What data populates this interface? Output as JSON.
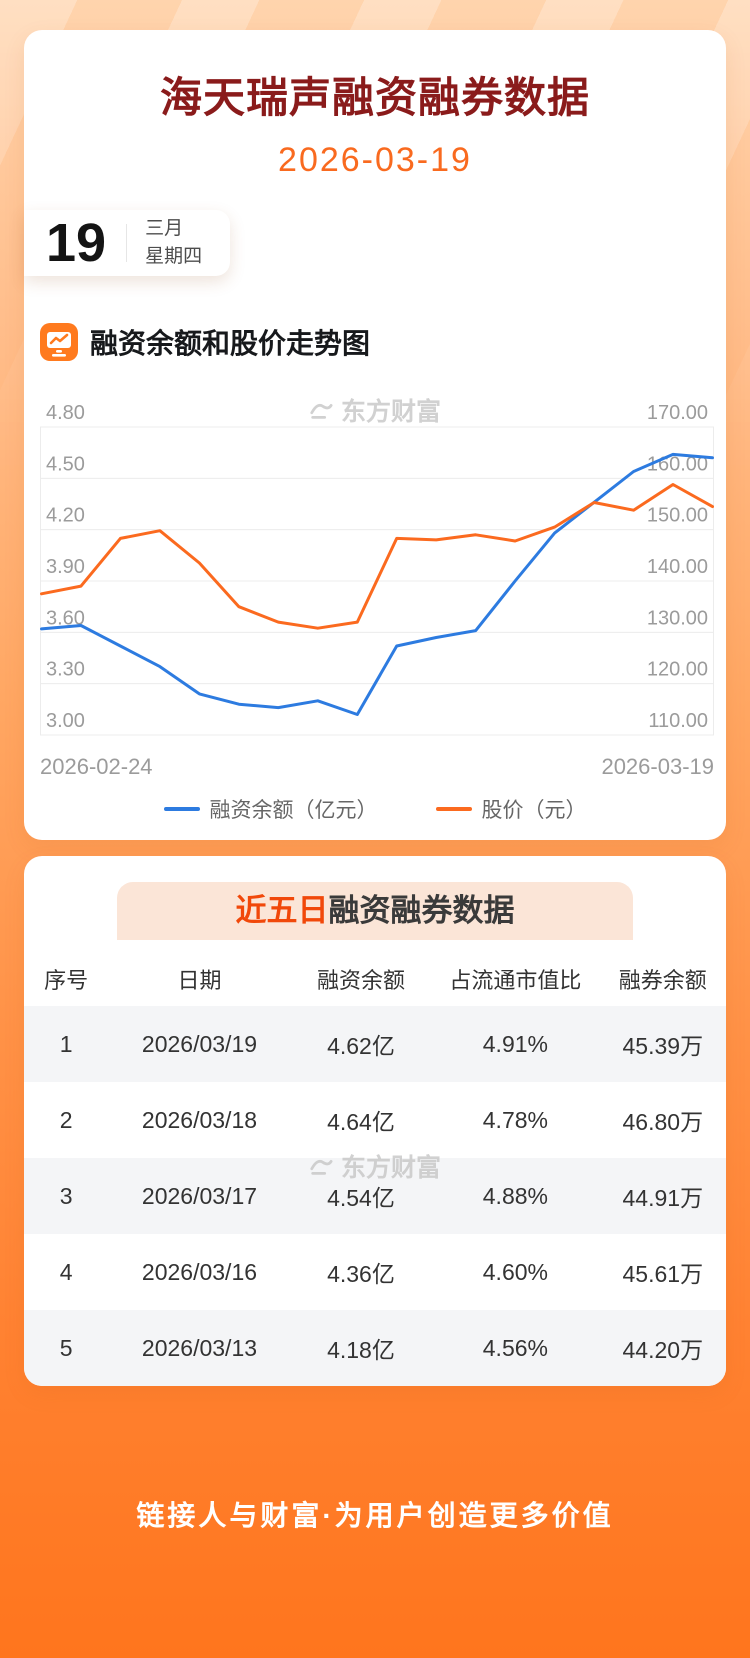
{
  "page": {
    "title": "海天瑞声融资融券数据",
    "date": "2026-03-19",
    "date_badge": {
      "day": "19",
      "month": "三月",
      "weekday": "星期四"
    },
    "footer": "链接人与财富·为用户创造更多价值"
  },
  "chart_section": {
    "title": "融资余额和股价走势图",
    "watermark": "东方财富",
    "legend": [
      {
        "label": "融资余额（亿元）",
        "color": "#2d7be0"
      },
      {
        "label": "股价（元）",
        "color": "#fb6a1f"
      }
    ]
  },
  "chart_data": {
    "type": "line",
    "title": "融资余额和股价走势图",
    "x_labels": [
      "2026-02-24",
      "2026-03-19"
    ],
    "grid": true,
    "legend_position": "bottom",
    "left_axis": {
      "label": "融资余额（亿元）",
      "min": 3.0,
      "max": 4.8,
      "ticks": [
        "3.00",
        "3.30",
        "3.60",
        "3.90",
        "4.20",
        "4.50",
        "4.80"
      ]
    },
    "right_axis": {
      "label": "股价（元）",
      "min": 110,
      "max": 170,
      "ticks": [
        "110.00",
        "120.00",
        "130.00",
        "140.00",
        "150.00",
        "160.00",
        "170.00"
      ]
    },
    "series": [
      {
        "name": "融资余额（亿元）",
        "axis": "left",
        "color": "#2d7be0",
        "values": [
          3.62,
          3.64,
          3.52,
          3.4,
          3.24,
          3.18,
          3.16,
          3.2,
          3.12,
          3.52,
          3.57,
          3.61,
          3.9,
          4.18,
          4.36,
          4.54,
          4.64,
          4.62
        ]
      },
      {
        "name": "股价（元）",
        "axis": "right",
        "color": "#fb6a1f",
        "values": [
          137.5,
          139.0,
          148.3,
          149.8,
          143.5,
          135.0,
          132.0,
          130.8,
          132.0,
          148.3,
          148.0,
          149.0,
          147.8,
          150.5,
          155.3,
          153.8,
          158.8,
          154.5
        ]
      }
    ]
  },
  "table_section": {
    "title_highlight": "近五日",
    "title_rest": "融资融券数据",
    "watermark": "东方财富",
    "headers": [
      "序号",
      "日期",
      "融资余额",
      "占流通市值比",
      "融券余额"
    ],
    "rows": [
      [
        "1",
        "2026/03/19",
        "4.62亿",
        "4.91%",
        "45.39万"
      ],
      [
        "2",
        "2026/03/18",
        "4.64亿",
        "4.78%",
        "46.80万"
      ],
      [
        "3",
        "2026/03/17",
        "4.54亿",
        "4.88%",
        "44.91万"
      ],
      [
        "4",
        "2026/03/16",
        "4.36亿",
        "4.60%",
        "45.61万"
      ],
      [
        "5",
        "2026/03/13",
        "4.18亿",
        "4.56%",
        "44.20万"
      ]
    ]
  },
  "colors": {
    "title_text": "#8a1b1b",
    "accent_orange": "#f96a1f",
    "line_blue": "#2d7be0",
    "line_orange": "#fb6a1f",
    "pill_background": "#fbe5d7",
    "pill_highlight": "#f1480a",
    "row_alt_background": "#f4f5f7",
    "footer_text": "#ffffff"
  }
}
